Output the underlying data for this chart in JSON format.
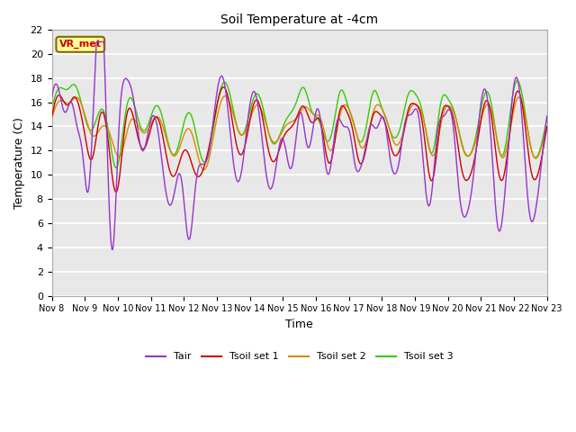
{
  "title": "Soil Temperature at -4cm",
  "xlabel": "Time",
  "ylabel": "Temperature (C)",
  "ylim": [
    0,
    22
  ],
  "yticks": [
    0,
    2,
    4,
    6,
    8,
    10,
    12,
    14,
    16,
    18,
    20,
    22
  ],
  "x_tick_labels": [
    "Nov 8",
    "Nov 9",
    "Nov 10",
    "Nov 11",
    "Nov 12",
    "Nov 13",
    "Nov 14",
    "Nov 15",
    "Nov 16",
    "Nov 17",
    "Nov 18",
    "Nov 19",
    "Nov 20",
    "Nov 21",
    "Nov 22",
    "Nov 23"
  ],
  "colors": {
    "Tair": "#9933CC",
    "Tsoil_set1": "#CC0000",
    "Tsoil_set2": "#DD8800",
    "Tsoil_set3": "#33CC00"
  },
  "background_color": "#E8E8E8",
  "annotation_text": "VR_met",
  "annotation_box_color": "#FFFF99",
  "annotation_border_color": "#886600",
  "legend_labels": [
    "Tair",
    "Tsoil set 1",
    "Tsoil set 2",
    "Tsoil set 3"
  ],
  "num_points": 1000
}
